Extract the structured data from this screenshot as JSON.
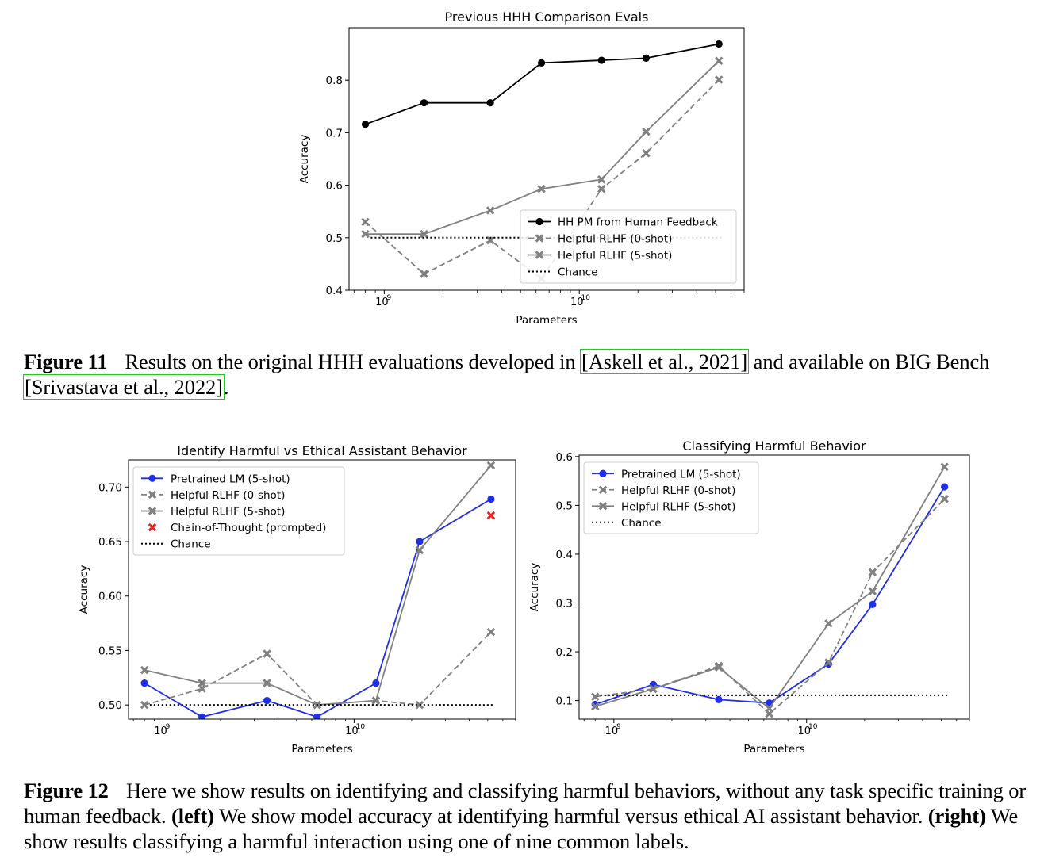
{
  "figure11": {
    "label": "Figure 11",
    "text_before": "Results on the original HHH evaluations developed in ",
    "cite1": "[Askell et al., 2021]",
    "text_mid": " and available on BIG Bench ",
    "cite2": "[Srivastava et al., 2022]",
    "text_after": "."
  },
  "figure12": {
    "label": "Figure 12",
    "text1": "Here we show results on identifying and classifying harmful behaviors, without any task specific training or human feedback. ",
    "left_label": "(left)",
    "text2": " We show model accuracy at identifying harmful versus ethical AI assistant behavior. ",
    "right_label": "(right)",
    "text3": " We show results classifying a harmful interaction using one of nine common labels."
  },
  "chart_data": [
    {
      "type": "line",
      "title": "Previous HHH Comparison Evals",
      "xlabel": "Parameters",
      "ylabel": "Accuracy",
      "xscale": "log",
      "ylim": [
        0.4,
        0.9
      ],
      "yticks": [
        0.4,
        0.5,
        0.6,
        0.7,
        0.8
      ],
      "ytick_labels": [
        "0.4",
        "0.5",
        "0.6",
        "0.7",
        "0.8"
      ],
      "xticks": [
        1000000000.0,
        10000000000.0
      ],
      "legend_position": "lower-right",
      "x": [
        800000000.0,
        1600000000.0,
        3500000000.0,
        6400000000.0,
        13000000000.0,
        22000000000.0,
        52000000000.0
      ],
      "series": [
        {
          "name": "HH PM from Human Feedback",
          "color": "#000000",
          "style": "solid",
          "marker": "circle",
          "values": [
            0.716,
            0.757,
            0.757,
            0.833,
            0.838,
            0.842,
            0.869
          ]
        },
        {
          "name": "Helpful RLHF (0-shot)",
          "color": "#808080",
          "style": "dashed",
          "marker": "x",
          "values": [
            0.53,
            0.431,
            0.495,
            0.422,
            0.593,
            0.661,
            0.801
          ]
        },
        {
          "name": "Helpful RLHF (5-shot)",
          "color": "#808080",
          "style": "solid",
          "marker": "x",
          "values": [
            0.507,
            0.507,
            0.552,
            0.593,
            0.611,
            0.702,
            0.837
          ]
        },
        {
          "name": "Chance",
          "color": "#000000",
          "style": "dotted",
          "marker": "none",
          "values": [
            0.5,
            0.5,
            0.5,
            0.5,
            0.5,
            0.5,
            0.5
          ]
        }
      ]
    },
    {
      "type": "line",
      "title": "Identify Harmful vs Ethical Assistant Behavior",
      "xlabel": "Parameters",
      "ylabel": "Accuracy",
      "xscale": "log",
      "ylim": [
        0.487,
        0.725
      ],
      "yticks": [
        0.5,
        0.55,
        0.6,
        0.65,
        0.7
      ],
      "ytick_labels": [
        "0.50",
        "0.55",
        "0.60",
        "0.65",
        "0.70"
      ],
      "xticks": [
        1000000000.0,
        10000000000.0
      ],
      "legend_position": "upper-left",
      "x": [
        800000000.0,
        1600000000.0,
        3500000000.0,
        6400000000.0,
        13000000000.0,
        22000000000.0,
        52000000000.0
      ],
      "series": [
        {
          "name": "Pretrained LM (5-shot)",
          "color": "#1f2fe8",
          "style": "solid",
          "marker": "circle",
          "values": [
            0.52,
            0.489,
            0.504,
            0.489,
            0.52,
            0.65,
            0.689
          ]
        },
        {
          "name": "Helpful RLHF (0-shot)",
          "color": "#808080",
          "style": "dashed",
          "marker": "x",
          "values": [
            0.5,
            0.515,
            0.547,
            0.5,
            0.504,
            0.5,
            0.567
          ]
        },
        {
          "name": "Helpful RLHF (5-shot)",
          "color": "#808080",
          "style": "solid",
          "marker": "x",
          "values": [
            0.532,
            0.52,
            0.52,
            0.5,
            0.504,
            0.642,
            0.72
          ]
        },
        {
          "name": "Chain-of-Thought (prompted)",
          "color": "#ee2020",
          "style": "none",
          "marker": "x",
          "x": [
            52000000000.0
          ],
          "values": [
            0.674
          ]
        },
        {
          "name": "Chance",
          "color": "#000000",
          "style": "dotted",
          "marker": "none",
          "values": [
            0.5,
            0.5,
            0.5,
            0.5,
            0.5,
            0.5,
            0.5
          ]
        }
      ]
    },
    {
      "type": "line",
      "title": "Classifying Harmful Behavior",
      "xlabel": "Parameters",
      "ylabel": "Accuracy",
      "xscale": "log",
      "ylim": [
        0.062,
        0.603
      ],
      "yticks": [
        0.1,
        0.2,
        0.3,
        0.4,
        0.5,
        0.6
      ],
      "ytick_labels": [
        "0.1",
        "0.2",
        "0.3",
        "0.4",
        "0.5",
        "0.6"
      ],
      "xticks": [
        1000000000.0,
        10000000000.0
      ],
      "legend_position": "upper-left",
      "x": [
        800000000.0,
        1600000000.0,
        3500000000.0,
        6400000000.0,
        13000000000.0,
        22000000000.0,
        52000000000.0
      ],
      "series": [
        {
          "name": "Pretrained LM (5-shot)",
          "color": "#1f2fe8",
          "style": "solid",
          "marker": "circle",
          "values": [
            0.092,
            0.133,
            0.102,
            0.095,
            0.175,
            0.297,
            0.538
          ]
        },
        {
          "name": "Helpful RLHF (0-shot)",
          "color": "#808080",
          "style": "dashed",
          "marker": "x",
          "values": [
            0.108,
            0.124,
            0.171,
            0.073,
            0.178,
            0.363,
            0.513
          ]
        },
        {
          "name": "Helpful RLHF (5-shot)",
          "color": "#808080",
          "style": "solid",
          "marker": "x",
          "values": [
            0.088,
            0.124,
            0.168,
            0.084,
            0.258,
            0.324,
            0.579
          ]
        },
        {
          "name": "Chance",
          "color": "#000000",
          "style": "dotted",
          "marker": "none",
          "values": [
            0.111,
            0.111,
            0.111,
            0.111,
            0.111,
            0.111,
            0.111
          ]
        }
      ]
    }
  ]
}
